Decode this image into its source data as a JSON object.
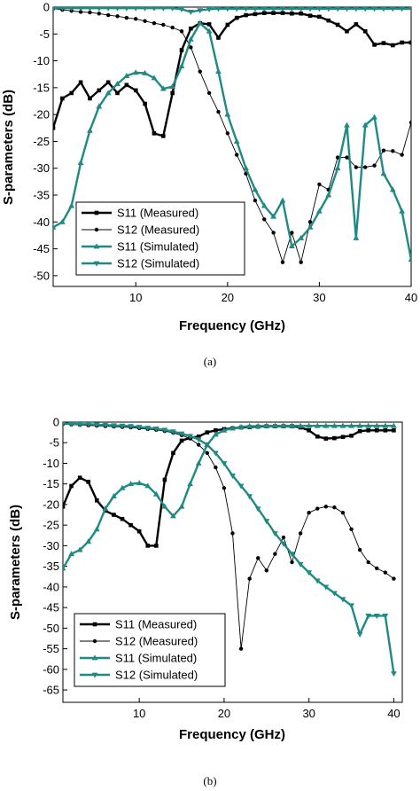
{
  "colors": {
    "measured": "#000000",
    "simulated": "#1f8a84"
  },
  "chart_data": [
    {
      "type": "line",
      "caption": "(a)",
      "xlabel": "Frequency (GHz)",
      "ylabel": "S-parameters (dB)",
      "xlim": [
        1,
        40
      ],
      "ylim": [
        -52,
        0
      ],
      "xticks": [
        10,
        20,
        30,
        40
      ],
      "yticks": [
        0,
        -5,
        -10,
        -15,
        -20,
        -25,
        -30,
        -35,
        -40,
        -45,
        -50
      ],
      "grid": false,
      "legend_position": "bottom-left",
      "series": [
        {
          "name": "S11 (Measured)",
          "style": "measured-square",
          "x": [
            1,
            2,
            3,
            4,
            5,
            6,
            7,
            8,
            9,
            10,
            11,
            12,
            13,
            14,
            15,
            16,
            17,
            18,
            19,
            20,
            21,
            22,
            23,
            24,
            25,
            26,
            27,
            28,
            29,
            30,
            31,
            32,
            33,
            34,
            35,
            36,
            37,
            38,
            39,
            40
          ],
          "y": [
            -22.5,
            -17,
            -16,
            -14,
            -17,
            -15.5,
            -14,
            -16,
            -14.5,
            -15.5,
            -18,
            -23.5,
            -24,
            -16,
            -8,
            -4,
            -3,
            -3.2,
            -5.7,
            -3.3,
            -2,
            -1.5,
            -1.3,
            -1.1,
            -1.1,
            -1.1,
            -1.2,
            -1.2,
            -1.6,
            -1.8,
            -2.5,
            -3.3,
            -4.5,
            -3.2,
            -4.5,
            -7,
            -6.7,
            -7.1,
            -6.6,
            -6.6
          ]
        },
        {
          "name": "S12 (Measured)",
          "style": "measured-circle",
          "x": [
            1,
            2,
            3,
            4,
            5,
            6,
            7,
            8,
            9,
            10,
            11,
            12,
            13,
            14,
            15,
            16,
            17,
            18,
            19,
            20,
            21,
            22,
            23,
            24,
            25,
            26,
            27,
            28,
            29,
            30,
            31,
            32,
            33,
            34,
            35,
            36,
            37,
            38,
            39,
            40
          ],
          "y": [
            -0.3,
            -0.5,
            -0.7,
            -0.9,
            -1,
            -1.2,
            -1.5,
            -1.7,
            -2,
            -2.2,
            -2.6,
            -3,
            -3.3,
            -3.8,
            -4.5,
            -7.5,
            -12,
            -16,
            -19.5,
            -23.5,
            -27.5,
            -31,
            -36,
            -39.5,
            -42,
            -47.5,
            -42,
            -47.5,
            -40,
            -33,
            -34,
            -28,
            -28,
            -29.8,
            -29.8,
            -29.5,
            -26.7,
            -26.8,
            -27.5,
            -21.5
          ]
        },
        {
          "name": "S11 (Simulated)",
          "style": "simulated-up",
          "x": [
            1,
            2,
            3,
            4,
            5,
            6,
            7,
            8,
            9,
            10,
            11,
            12,
            13,
            14,
            15,
            16,
            17,
            18,
            19,
            20,
            21,
            22,
            23,
            24,
            25,
            26,
            27,
            28,
            29,
            30,
            31,
            32,
            33,
            34,
            35,
            36,
            37,
            38,
            39,
            40
          ],
          "y": [
            -41,
            -40,
            -37,
            -29,
            -23,
            -18.5,
            -16,
            -14.3,
            -12.8,
            -12.2,
            -12.3,
            -13.2,
            -15.2,
            -14.8,
            -11,
            -6,
            -3,
            -4.5,
            -12,
            -20,
            -25,
            -30,
            -34,
            -37,
            -39,
            -36,
            -44.5,
            -43,
            -41,
            -38,
            -35,
            -30,
            -22,
            -43,
            -22,
            -20.5,
            -31,
            -34,
            -38,
            -47
          ]
        },
        {
          "name": "S12 (Simulated)",
          "style": "simulated-down",
          "x": [
            1,
            2,
            3,
            4,
            5,
            6,
            7,
            8,
            9,
            10,
            11,
            12,
            13,
            14,
            15,
            16,
            17,
            18,
            19,
            20,
            21,
            22,
            23,
            24,
            25,
            26,
            27,
            28,
            29,
            30,
            31,
            32,
            33,
            34,
            35,
            36,
            37,
            38,
            39,
            40
          ],
          "y": [
            -0.2,
            -0.2,
            -0.2,
            -0.2,
            -0.2,
            -0.2,
            -0.2,
            -0.2,
            -0.2,
            -0.2,
            -0.2,
            -0.2,
            -0.2,
            -0.2,
            -0.4,
            -0.9,
            -0.6,
            -0.4,
            -0.3,
            -0.3,
            -0.3,
            -0.3,
            -0.3,
            -0.3,
            -0.3,
            -0.3,
            -0.3,
            -0.3,
            -0.3,
            -0.3,
            -0.3,
            -0.3,
            -0.3,
            -0.3,
            -0.3,
            -0.3,
            -0.3,
            -0.3,
            -0.3,
            -0.3
          ]
        }
      ]
    },
    {
      "type": "line",
      "caption": "(b)",
      "xlabel": "Frequency (GHz)",
      "ylabel": "S-parameters (dB)",
      "xlim": [
        1,
        41
      ],
      "ylim": [
        -68,
        0
      ],
      "xticks": [
        10,
        20,
        30,
        40
      ],
      "yticks": [
        0,
        -5,
        -10,
        -15,
        -20,
        -25,
        -30,
        -35,
        -40,
        -45,
        -50,
        -55,
        -60,
        -65
      ],
      "grid": false,
      "legend_position": "bottom-left",
      "series": [
        {
          "name": "S11 (Measured)",
          "style": "measured-square",
          "x": [
            1,
            2,
            3,
            4,
            5,
            6,
            7,
            8,
            9,
            10,
            11,
            12,
            13,
            14,
            15,
            16,
            17,
            18,
            19,
            20,
            21,
            22,
            23,
            24,
            25,
            26,
            27,
            28,
            29,
            30,
            31,
            32,
            33,
            34,
            35,
            36,
            37,
            38,
            39,
            40
          ],
          "y": [
            -20.5,
            -15.5,
            -13.5,
            -14.5,
            -19,
            -21.5,
            -22.5,
            -23.5,
            -25,
            -26.5,
            -30,
            -30,
            -14,
            -7.5,
            -4.5,
            -3.8,
            -3.5,
            -2.5,
            -2,
            -1.7,
            -1.5,
            -1.3,
            -1.2,
            -1.1,
            -1,
            -1,
            -1,
            -1,
            -1.3,
            -2,
            -3.5,
            -4,
            -3.9,
            -3.6,
            -3.3,
            -2.2,
            -2,
            -2,
            -2,
            -2
          ]
        },
        {
          "name": "S12 (Measured)",
          "style": "measured-circle",
          "x": [
            1,
            2,
            3,
            4,
            5,
            6,
            7,
            8,
            9,
            10,
            11,
            12,
            13,
            14,
            15,
            16,
            17,
            18,
            19,
            20,
            21,
            22,
            23,
            24,
            25,
            26,
            27,
            28,
            29,
            30,
            31,
            32,
            33,
            34,
            35,
            36,
            37,
            38,
            39,
            40
          ],
          "y": [
            -0.5,
            -0.6,
            -0.7,
            -0.8,
            -0.9,
            -1,
            -1.1,
            -1.2,
            -1.3,
            -1.5,
            -1.7,
            -1.9,
            -2.2,
            -2.6,
            -3.2,
            -4,
            -5.5,
            -7.5,
            -11,
            -16,
            -27,
            -55,
            -38,
            -33,
            -36,
            -32,
            -28,
            -34,
            -27,
            -22,
            -21,
            -20.5,
            -20.7,
            -22,
            -26,
            -31,
            -34,
            -35.5,
            -36.5,
            -38
          ]
        },
        {
          "name": "S11 (Simulated)",
          "style": "simulated-up",
          "x": [
            1,
            2,
            3,
            4,
            5,
            6,
            7,
            8,
            9,
            10,
            11,
            12,
            13,
            14,
            15,
            16,
            17,
            18,
            19,
            20,
            21,
            22,
            23,
            24,
            25,
            26,
            27,
            28,
            29,
            30,
            31,
            32,
            33,
            34,
            35,
            36,
            37,
            38,
            39,
            40
          ],
          "y": [
            -35.5,
            -32,
            -31,
            -29,
            -26,
            -21,
            -18,
            -16,
            -15,
            -14.8,
            -15.5,
            -17.5,
            -20.5,
            -22.8,
            -20.5,
            -15,
            -10,
            -5.5,
            -3,
            -2,
            -1.5,
            -1.2,
            -1,
            -1,
            -0.9,
            -0.9,
            -0.9,
            -0.9,
            -0.9,
            -0.9,
            -0.9,
            -0.9,
            -0.9,
            -0.9,
            -0.9,
            -0.9,
            -0.9,
            -0.9,
            -0.9,
            -0.9
          ]
        },
        {
          "name": "S12 (Simulated)",
          "style": "simulated-down",
          "x": [
            1,
            2,
            3,
            4,
            5,
            6,
            7,
            8,
            9,
            10,
            11,
            12,
            13,
            14,
            15,
            16,
            17,
            18,
            19,
            20,
            21,
            22,
            23,
            24,
            25,
            26,
            27,
            28,
            29,
            30,
            31,
            32,
            33,
            34,
            35,
            36,
            37,
            38,
            39,
            40
          ],
          "y": [
            -0.3,
            -0.4,
            -0.5,
            -0.5,
            -0.6,
            -0.7,
            -0.8,
            -0.9,
            -1,
            -1.2,
            -1.4,
            -1.6,
            -1.9,
            -2.3,
            -2.8,
            -3.4,
            -4.2,
            -5.5,
            -7.5,
            -10,
            -13,
            -15.5,
            -18,
            -21,
            -24,
            -27,
            -29.5,
            -32,
            -34.5,
            -36.5,
            -38.5,
            -40,
            -41.5,
            -43,
            -44.5,
            -51.5,
            -47,
            -47,
            -47,
            -61
          ]
        }
      ]
    }
  ]
}
